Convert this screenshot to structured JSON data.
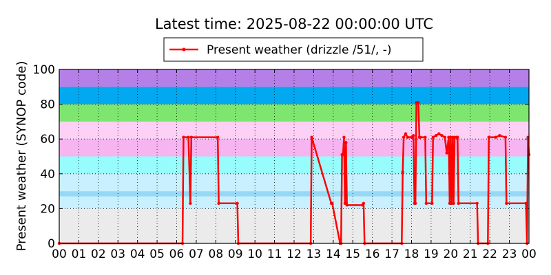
{
  "chart_data": {
    "type": "line",
    "title": "Latest time: 2025-08-22 00:00:00 UTC",
    "xlabel": "",
    "ylabel": "Present weather (SYNOP code)",
    "xlim": [
      0,
      24
    ],
    "ylim": [
      0,
      100
    ],
    "x_tick_labels": [
      "00",
      "01",
      "02",
      "03",
      "04",
      "05",
      "06",
      "07",
      "08",
      "09",
      "10",
      "11",
      "12",
      "13",
      "14",
      "15",
      "16",
      "17",
      "18",
      "19",
      "20",
      "21",
      "22",
      "23",
      "00"
    ],
    "y_ticks": [
      0,
      20,
      40,
      60,
      80,
      100
    ],
    "grid": true,
    "legend": {
      "placement": "top-center"
    },
    "bands": [
      {
        "from": 0,
        "to": 20,
        "color": "#ebebeb"
      },
      {
        "from": 20,
        "to": 27,
        "color": "#c8f0ff"
      },
      {
        "from": 27,
        "to": 30,
        "color": "#96d8f5"
      },
      {
        "from": 30,
        "to": 40,
        "color": "#c8f0ff"
      },
      {
        "from": 40,
        "to": 50,
        "color": "#96fcfc"
      },
      {
        "from": 50,
        "to": 60,
        "color": "#f6b4f0"
      },
      {
        "from": 60,
        "to": 70,
        "color": "#fdd0f5"
      },
      {
        "from": 70,
        "to": 80,
        "color": "#7ee66e"
      },
      {
        "from": 80,
        "to": 90,
        "color": "#02a8f0"
      },
      {
        "from": 90,
        "to": 100,
        "color": "#b47fe6"
      },
      {
        "from": 100,
        "to": 110,
        "color": "#f4f03a"
      }
    ],
    "series": [
      {
        "name": "Present weather (drizzle /51/, -)",
        "color": "#ff0000",
        "x": [
          0,
          6.3,
          6.35,
          6.6,
          6.7,
          6.75,
          8.1,
          8.15,
          9.1,
          9.15,
          12.85,
          12.9,
          13.9,
          13.95,
          14.35,
          14.4,
          14.45,
          14.5,
          14.55,
          14.6,
          14.65,
          14.7,
          15.5,
          15.55,
          15.6,
          17.5,
          17.55,
          17.6,
          17.7,
          17.8,
          18.0,
          18.1,
          18.15,
          18.2,
          18.25,
          18.35,
          18.4,
          18.45,
          18.7,
          18.75,
          19.05,
          19.1,
          19.25,
          19.4,
          19.55,
          19.7,
          19.8,
          19.9,
          19.95,
          20.0,
          20.05,
          20.1,
          20.15,
          20.2,
          20.3,
          20.35,
          20.4,
          21.35,
          21.4,
          21.9,
          21.95,
          22.3,
          22.5,
          22.8,
          22.85,
          23.85,
          23.9,
          23.95,
          24.0
        ],
        "values": [
          0,
          0,
          61,
          61,
          23,
          61,
          61,
          23,
          23,
          0,
          0,
          61,
          23,
          23,
          0,
          0,
          51,
          51,
          61,
          23,
          58,
          22,
          22,
          23,
          0,
          0,
          41,
          61,
          63,
          61,
          61,
          62,
          23,
          23,
          81,
          81,
          61,
          61,
          61,
          23,
          23,
          61,
          62,
          63,
          62,
          61,
          52,
          61,
          23,
          61,
          23,
          61,
          23,
          61,
          61,
          61,
          23,
          23,
          0,
          0,
          61,
          61,
          62,
          61,
          23,
          23,
          0,
          61,
          51
        ]
      }
    ]
  }
}
